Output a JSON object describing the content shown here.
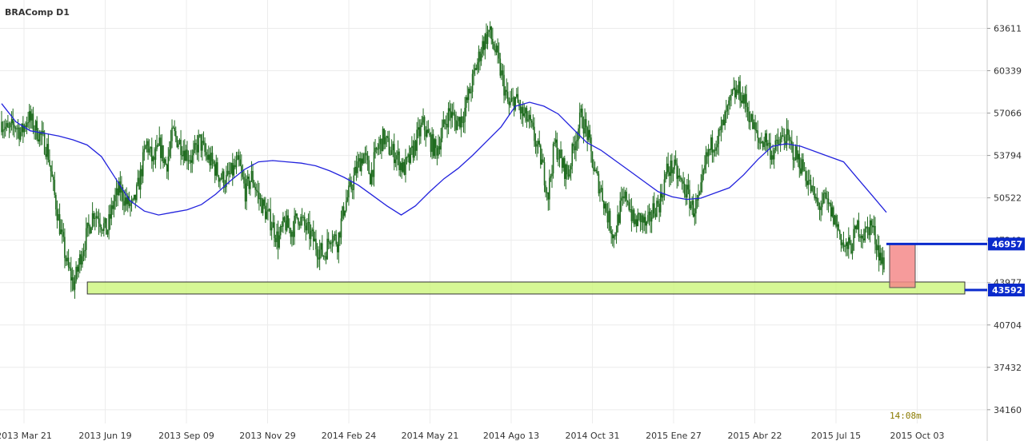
{
  "chart_data": {
    "type": "candlestick",
    "title": "BRAComp D1",
    "ylim": [
      33100,
      65800
    ],
    "y_ticks": [
      "63611",
      "60339",
      "57066",
      "53794",
      "50522",
      "47249",
      "43977",
      "40704",
      "37432",
      "34160"
    ],
    "x_ticks": [
      "2013 Mar 21",
      "2013 Jun 19",
      "2013 Sep 09",
      "2013 Nov 29",
      "2014 Feb 24",
      "2014 May 21",
      "2014 Ago 13",
      "2014 Oct 31",
      "2015 Ene 27",
      "2015 Abr 22",
      "2015 Jul 15",
      "2015 Oct 03"
    ],
    "price_path": [
      56400,
      55600,
      56200,
      55500,
      56800,
      56000,
      55200,
      54200,
      50800,
      47800,
      45200,
      43800,
      46000,
      47800,
      49500,
      48800,
      47900,
      50200,
      51200,
      50100,
      49800,
      52000,
      54800,
      53200,
      54500,
      53000,
      55500,
      54800,
      54000,
      53500,
      55000,
      53800,
      53200,
      52300,
      51800,
      52500,
      53200,
      51000,
      52200,
      50600,
      49500,
      48600,
      47200,
      48600,
      47900,
      49200,
      48300,
      47600,
      46600,
      46100,
      47800,
      47100,
      49800,
      51200,
      52900,
      53900,
      52200,
      54200,
      55200,
      54200,
      53800,
      52700,
      53500,
      55000,
      56200,
      55000,
      54100,
      55800,
      57200,
      56300,
      56800,
      58500,
      60500,
      62300,
      63400,
      61800,
      59800,
      57500,
      58200,
      57000,
      56500,
      55000,
      53300,
      50800,
      54800,
      53200,
      52300,
      54800,
      56800,
      55400,
      52500,
      51200,
      49200,
      47500,
      49800,
      50700,
      48500,
      49000,
      48200,
      49700,
      50200,
      52600,
      52900,
      51800,
      51000,
      49600,
      50300,
      53500,
      54800,
      55300,
      56800,
      58400,
      58800,
      57800,
      56200,
      54800,
      55100,
      53900,
      54700,
      55300,
      54300,
      53500,
      52500,
      51100,
      49800,
      50300,
      49400,
      48200,
      46600,
      46800,
      48300,
      47600,
      48600,
      46800,
      45100
    ],
    "ma_line": [
      57800,
      56400,
      55700,
      55500,
      55300,
      55000,
      54600,
      53700,
      52000,
      50300,
      49500,
      49200,
      49400,
      49600,
      50000,
      50800,
      51800,
      52700,
      53300,
      53400,
      53300,
      53200,
      53000,
      52600,
      52100,
      51500,
      50700,
      49900,
      49200,
      49900,
      51000,
      52000,
      52800,
      53800,
      54900,
      56000,
      57600,
      57900,
      57600,
      57000,
      55900,
      54800,
      54200,
      53400,
      52600,
      51800,
      51000,
      50600,
      50400,
      50500,
      50900,
      51300,
      52300,
      53500,
      54500,
      54700,
      54500,
      54100,
      53700,
      53300,
      52000,
      50700,
      49400
    ],
    "series": [
      {
        "values": [
          "46957",
          "43592"
        ]
      }
    ],
    "annotations": {
      "time_remaining": "14:08m",
      "support_price": 43590,
      "support_from": "2013 Jun 19",
      "resistance_price": 46957,
      "target_zone": [
        43592,
        46957
      ]
    },
    "colors": {
      "candle": "#1e6b1e",
      "ma": "#2222dd",
      "support_fill": "#ccf57a",
      "support_stroke": "#333333",
      "zone_fill": "#f58a8a",
      "badge": "#0a2acc",
      "grid": "#ececec"
    }
  }
}
